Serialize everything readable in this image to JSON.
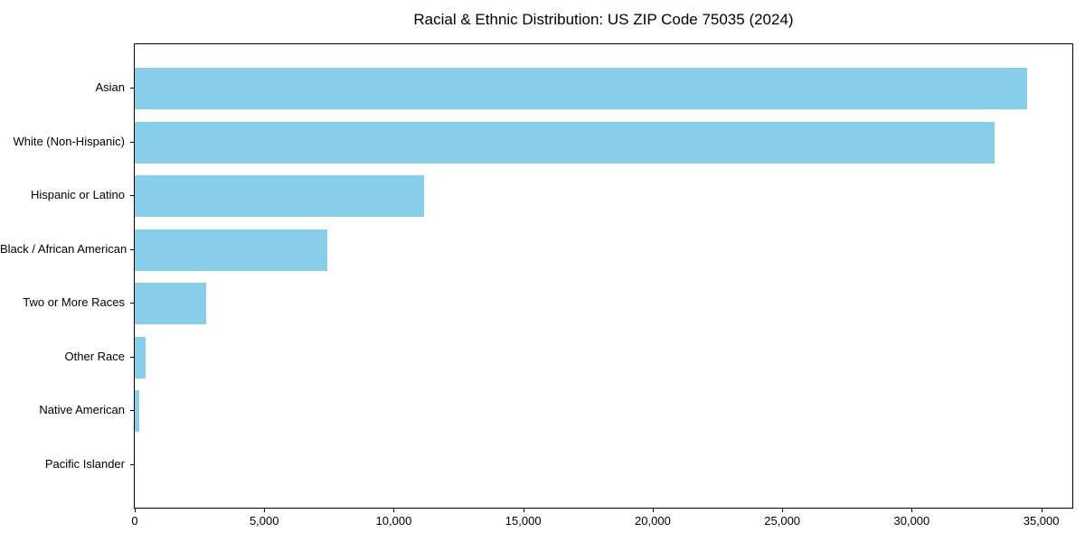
{
  "chart_data": {
    "type": "bar",
    "orientation": "horizontal",
    "title": "Racial & Ethnic Distribution: US ZIP Code 75035 (2024)",
    "categories": [
      "Asian",
      "White (Non-Hispanic)",
      "Hispanic or Latino",
      "Black / African American",
      "Two or More Races",
      "Other Race",
      "Native American",
      "Pacific Islander"
    ],
    "values": [
      34450,
      33190,
      11160,
      7420,
      2750,
      410,
      185,
      0
    ],
    "xlabel": "",
    "ylabel": "",
    "xlim": [
      0,
      36200
    ],
    "x_ticks": [
      0,
      5000,
      10000,
      15000,
      20000,
      25000,
      30000,
      35000
    ],
    "x_tick_labels": [
      "0",
      "5,000",
      "10,000",
      "15,000",
      "20,000",
      "25,000",
      "30,000",
      "35,000"
    ],
    "grid": false,
    "legend": null,
    "bar_color": "#87CEEB",
    "background_color": "#ffffff",
    "axis_color": "#000000",
    "text_color": "#000000"
  }
}
